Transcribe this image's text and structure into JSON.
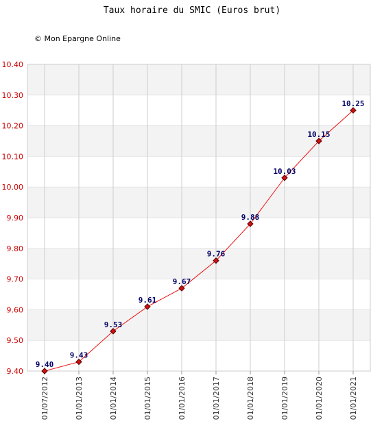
{
  "chart_data": {
    "type": "line",
    "title": "Taux horaire du SMIC (Euros brut)",
    "credit": "© Mon Epargne Online",
    "categories": [
      "01/07/2012",
      "01/01/2013",
      "01/01/2014",
      "01/01/2015",
      "01/01/2016",
      "01/01/2017",
      "01/01/2018",
      "01/01/2019",
      "01/01/2020",
      "01/01/2021"
    ],
    "values": [
      9.4,
      9.43,
      9.53,
      9.61,
      9.67,
      9.76,
      9.88,
      10.03,
      10.15,
      10.25
    ],
    "value_labels": [
      "9.40",
      "9.43",
      "9.53",
      "9.61",
      "9.67",
      "9.76",
      "9.88",
      "10.03",
      "10.15",
      "10.25"
    ],
    "ylim": [
      9.4,
      10.4
    ],
    "yticks": [
      "9.40",
      "9.50",
      "9.60",
      "9.70",
      "9.80",
      "9.90",
      "10.00",
      "10.10",
      "10.20",
      "10.30",
      "10.40"
    ],
    "grid": true,
    "colors": {
      "line": "#ee1111",
      "marker_fill": "#cc1111",
      "marker_stroke": "#550000",
      "ytick": "#cc0000",
      "label": "#000066",
      "band": "#f3f3f3",
      "grid": "#cccccc"
    }
  }
}
